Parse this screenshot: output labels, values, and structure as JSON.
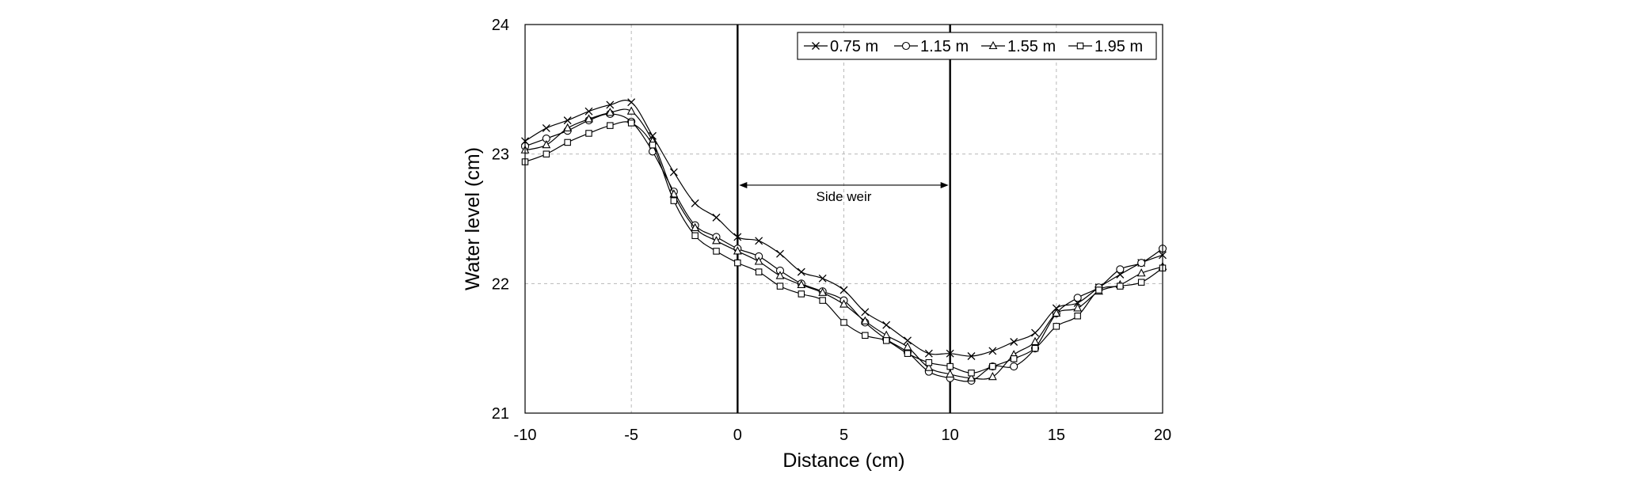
{
  "chart_data": {
    "type": "line",
    "xlabel": "Distance (cm)",
    "ylabel": "Water level (cm)",
    "xlim": [
      -10,
      20
    ],
    "ylim": [
      21,
      24
    ],
    "xticks": [
      "-10",
      "-5",
      "0",
      "5",
      "10",
      "15",
      "20"
    ],
    "yticks": [
      "21",
      "22",
      "23",
      "24"
    ],
    "grid": true,
    "legend_position": "top-right",
    "vertical_lines": [
      0,
      10
    ],
    "annotation": {
      "text": "Side weir",
      "from": 0,
      "to": 10,
      "y": 22.76
    },
    "series": [
      {
        "name": "0.75 m",
        "marker": "x",
        "x": [
          -10,
          -9,
          -8,
          -7,
          -6,
          -5,
          -4,
          -3,
          -2,
          -1,
          0,
          1,
          2,
          3,
          4,
          5,
          6,
          7,
          8,
          9,
          10,
          11,
          12,
          13,
          14,
          15,
          16,
          17,
          18,
          19,
          20
        ],
        "values": [
          23.1,
          23.2,
          23.26,
          23.33,
          23.38,
          23.4,
          23.14,
          22.86,
          22.62,
          22.51,
          22.36,
          22.33,
          22.23,
          22.09,
          22.04,
          21.95,
          21.78,
          21.68,
          21.56,
          21.46,
          21.46,
          21.44,
          21.48,
          21.55,
          21.62,
          21.81,
          21.85,
          21.97,
          22.07,
          22.16,
          22.22
        ]
      },
      {
        "name": "1.15 m",
        "marker": "circle",
        "x": [
          -10,
          -9,
          -8,
          -7,
          -6,
          -5,
          -4,
          -3,
          -2,
          -1,
          0,
          1,
          2,
          3,
          4,
          5,
          6,
          7,
          8,
          9,
          10,
          11,
          12,
          13,
          14,
          15,
          16,
          17,
          18,
          19,
          20
        ],
        "values": [
          23.06,
          23.12,
          23.18,
          23.26,
          23.31,
          23.25,
          23.02,
          22.71,
          22.45,
          22.36,
          22.27,
          22.21,
          22.1,
          22.0,
          21.94,
          21.87,
          21.7,
          21.57,
          21.47,
          21.32,
          21.27,
          21.25,
          21.36,
          21.36,
          21.5,
          21.77,
          21.89,
          21.97,
          22.11,
          22.16,
          22.27
        ]
      },
      {
        "name": "1.55 m",
        "marker": "triangle",
        "x": [
          -10,
          -9,
          -8,
          -7,
          -6,
          -5,
          -4,
          -3,
          -2,
          -1,
          0,
          1,
          2,
          3,
          4,
          5,
          6,
          7,
          8,
          9,
          10,
          11,
          12,
          13,
          14,
          15,
          16,
          17,
          18,
          19,
          20
        ],
        "values": [
          23.03,
          23.07,
          23.2,
          23.27,
          23.32,
          23.33,
          23.1,
          22.69,
          22.43,
          22.33,
          22.25,
          22.17,
          22.06,
          21.99,
          21.93,
          21.84,
          21.71,
          21.6,
          21.51,
          21.35,
          21.3,
          21.27,
          21.28,
          21.45,
          21.55,
          21.77,
          21.81,
          21.94,
          21.99,
          22.08,
          22.13
        ]
      },
      {
        "name": "1.95 m",
        "marker": "square",
        "x": [
          -10,
          -9,
          -8,
          -7,
          -6,
          -5,
          -4,
          -3,
          -2,
          -1,
          0,
          1,
          2,
          3,
          4,
          5,
          6,
          7,
          8,
          9,
          10,
          11,
          12,
          13,
          14,
          15,
          16,
          17,
          18,
          19,
          20
        ],
        "values": [
          22.94,
          23.0,
          23.09,
          23.16,
          23.22,
          23.24,
          23.07,
          22.64,
          22.37,
          22.25,
          22.16,
          22.09,
          21.98,
          21.92,
          21.87,
          21.7,
          21.6,
          21.56,
          21.46,
          21.39,
          21.36,
          21.31,
          21.36,
          21.42,
          21.5,
          21.67,
          21.75,
          21.95,
          21.98,
          22.01,
          22.12
        ]
      }
    ]
  }
}
